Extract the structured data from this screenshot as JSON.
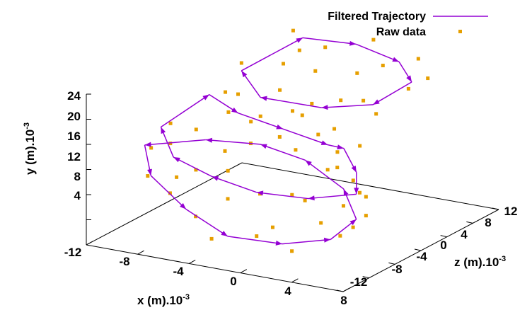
{
  "chart_data": {
    "type": "scatter",
    "dimensions": 3,
    "legend_position": "top-right",
    "grid": false,
    "colors": {
      "filtered": "#9400d3",
      "raw": "#e69f00",
      "axes": "#000000"
    },
    "axes": {
      "x": {
        "label": "x (m).10",
        "exponent": "-3",
        "range": [
          -12,
          8
        ],
        "ticks": [
          "-12",
          "-8",
          "-4",
          "0",
          "4",
          "8"
        ]
      },
      "y": {
        "label": "y (m).10",
        "exponent": "-3",
        "range": [
          0,
          24
        ],
        "ticks": [
          "4",
          "8",
          "12",
          "16",
          "20",
          "24"
        ]
      },
      "z": {
        "label": "z (m).10",
        "exponent": "-3",
        "range": [
          -12,
          12
        ],
        "ticks": [
          "-12",
          "-8",
          "-4",
          "0",
          "4",
          "8",
          "12"
        ]
      }
    },
    "series": [
      {
        "name": "Filtered Trajectory",
        "style": "line-with-arrows",
        "points": [
          [
            -6,
            23.5,
            9.5
          ],
          [
            -2,
            23.8,
            9.8
          ],
          [
            2,
            23.2,
            8.5
          ],
          [
            4,
            21.8,
            6.5
          ],
          [
            3,
            20.0,
            2.5
          ],
          [
            0,
            19.5,
            0.5
          ],
          [
            -5,
            19.0,
            1.0
          ],
          [
            -8,
            20.5,
            4.0
          ],
          [
            -6,
            23.5,
            9.5
          ]
        ]
      },
      {
        "name": "Filtered Trajectory",
        "style": "line-with-arrows",
        "points": [
          [
            -10,
            16.5,
            3.0
          ],
          [
            -7,
            15.5,
            1.5
          ],
          [
            -3,
            15.0,
            0.5
          ],
          [
            1,
            14.5,
            -0.5
          ],
          [
            3,
            15.5,
            -2.0
          ],
          [
            5,
            13.5,
            -4.0
          ],
          [
            6,
            11.5,
            -6.0
          ],
          [
            3,
            10.5,
            -7.5
          ],
          [
            -1,
            10.0,
            -7.5
          ],
          [
            -5,
            10.5,
            -6.5
          ],
          [
            -9,
            11.0,
            -4.5
          ],
          [
            -12,
            12.5,
            -0.5
          ],
          [
            -10,
            16.5,
            3.0
          ]
        ]
      },
      {
        "name": "Filtered Trajectory",
        "style": "line-with-arrows",
        "points": [
          [
            -12,
            11.0,
            -3.0
          ],
          [
            -10,
            8.5,
            -6.0
          ],
          [
            -6,
            6.0,
            -8.5
          ],
          [
            -2,
            4.0,
            -10.0
          ],
          [
            2,
            4.0,
            -9.5
          ],
          [
            5,
            5.0,
            -8.0
          ],
          [
            6,
            7.5,
            -6.0
          ],
          [
            4,
            10.5,
            -4.0
          ],
          [
            0,
            12.5,
            -2.0
          ],
          [
            -4,
            13.0,
            -1.0
          ],
          [
            -8,
            12.5,
            -1.5
          ],
          [
            -12,
            11.0,
            -3.0
          ]
        ]
      },
      {
        "name": "Raw data",
        "style": "points",
        "points": [
          [
            -7,
            24.0,
            10.0
          ],
          [
            -4,
            23.0,
            9.0
          ],
          [
            -1,
            24.5,
            10.5
          ],
          [
            1,
            22.5,
            8.0
          ],
          [
            3,
            23.5,
            9.5
          ],
          [
            4,
            21.0,
            6.0
          ],
          [
            3.5,
            19.0,
            2.0
          ],
          [
            1,
            20.5,
            1.5
          ],
          [
            -2,
            18.5,
            0.0
          ],
          [
            -4,
            20.0,
            2.0
          ],
          [
            -7,
            18.5,
            1.5
          ],
          [
            -8.5,
            21.0,
            5.0
          ],
          [
            -5.5,
            22.5,
            8.0
          ],
          [
            0,
            22.0,
            6.0
          ],
          [
            2,
            20.0,
            3.0
          ],
          [
            -3,
            21.5,
            5.5
          ],
          [
            -6,
            21.0,
            6.5
          ],
          [
            5,
            22.5,
            7.0
          ],
          [
            -1,
            19.5,
            1.0
          ],
          [
            -9,
            17.0,
            3.5
          ],
          [
            -8,
            15.0,
            2.0
          ],
          [
            -5,
            16.0,
            1.0
          ],
          [
            -3,
            14.0,
            0.0
          ],
          [
            0,
            15.5,
            0.0
          ],
          [
            2,
            14.0,
            -1.0
          ],
          [
            4,
            16.0,
            -1.5
          ],
          [
            5,
            12.5,
            -4.5
          ],
          [
            6.5,
            11.0,
            -5.5
          ],
          [
            5.5,
            10.0,
            -7.0
          ],
          [
            2,
            11.0,
            -8.0
          ],
          [
            -1,
            9.5,
            -7.0
          ],
          [
            -4,
            11.5,
            -6.0
          ],
          [
            -7,
            10.0,
            -5.0
          ],
          [
            -10,
            12.0,
            -3.0
          ],
          [
            -11.5,
            13.0,
            0.0
          ],
          [
            -12,
            10.0,
            -2.0
          ],
          [
            -10.5,
            8.0,
            -5.5
          ],
          [
            -8,
            7.0,
            -7.0
          ],
          [
            -5,
            5.5,
            -9.0
          ],
          [
            -3,
            3.5,
            -10.5
          ],
          [
            0,
            4.5,
            -9.5
          ],
          [
            3,
            3.5,
            -10.0
          ],
          [
            5.5,
            5.5,
            -7.5
          ],
          [
            6.5,
            8.0,
            -5.5
          ],
          [
            5,
            10.0,
            -3.5
          ],
          [
            2,
            12.0,
            -2.5
          ],
          [
            -1,
            13.5,
            -1.5
          ],
          [
            -5,
            12.5,
            -0.5
          ],
          [
            -9,
            13.5,
            -1.0
          ],
          [
            -6,
            14.5,
            1.5
          ],
          [
            1,
            16.5,
            0.5
          ],
          [
            -2,
            17.0,
            1.5
          ],
          [
            3,
            13.0,
            -3.0
          ],
          [
            -3,
            8.5,
            -8.0
          ],
          [
            1,
            6.0,
            -9.0
          ],
          [
            4,
            7.0,
            -7.5
          ],
          [
            -8,
            9.0,
            -6.0
          ],
          [
            6,
            6.5,
            -6.5
          ],
          [
            2,
            9.0,
            -6.0
          ],
          [
            -6,
            12.0,
            -2.5
          ]
        ]
      }
    ]
  }
}
